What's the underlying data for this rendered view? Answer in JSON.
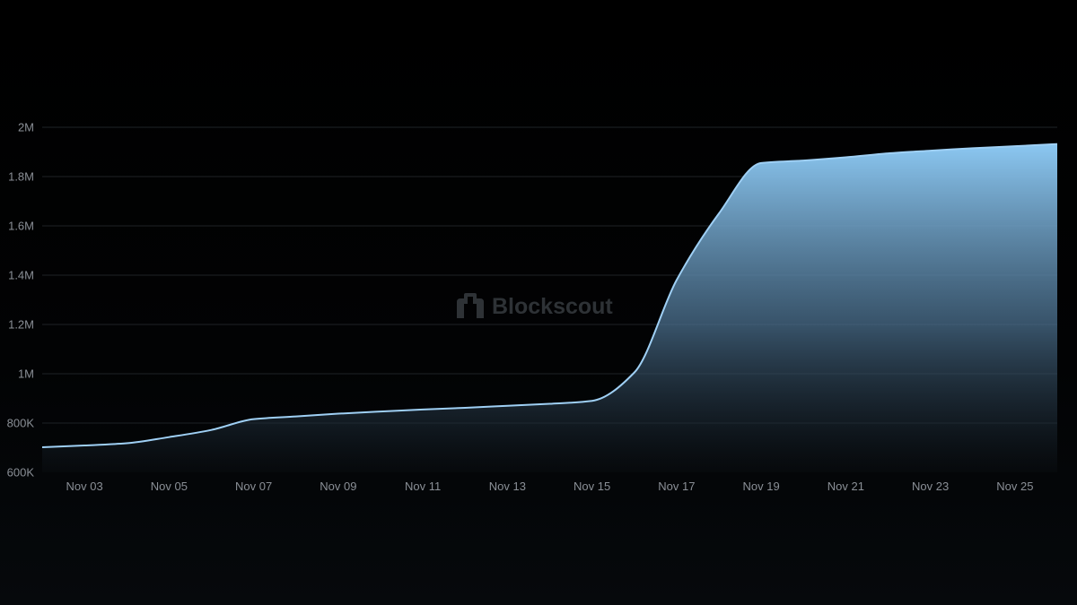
{
  "colors": {
    "background": "#000000",
    "line": "#9fd0f5",
    "fill_top": "#8cc8f2",
    "fill_bottom": "#0a0e12",
    "grid": "#1e2226",
    "tick_text": "#8a8f96",
    "watermark": "#2e3236"
  },
  "watermark": {
    "text": "Blockscout",
    "icon": "blockscout-logo-icon"
  },
  "chart_data": {
    "type": "area",
    "title": "",
    "xlabel": "",
    "ylabel": "",
    "grid": true,
    "legend": "none",
    "ylim": [
      600000,
      2000000
    ],
    "yticks": [
      {
        "value": 600000,
        "label": "600K"
      },
      {
        "value": 800000,
        "label": "800K"
      },
      {
        "value": 1000000,
        "label": "1M"
      },
      {
        "value": 1200000,
        "label": "1.2M"
      },
      {
        "value": 1400000,
        "label": "1.4M"
      },
      {
        "value": 1600000,
        "label": "1.6M"
      },
      {
        "value": 1800000,
        "label": "1.8M"
      },
      {
        "value": 2000000,
        "label": "2M"
      }
    ],
    "xlim": [
      "Nov 02",
      "Nov 26"
    ],
    "xticks": [
      "Nov 03",
      "Nov 05",
      "Nov 07",
      "Nov 09",
      "Nov 11",
      "Nov 13",
      "Nov 15",
      "Nov 17",
      "Nov 19",
      "Nov 21",
      "Nov 23",
      "Nov 25"
    ],
    "x": [
      "Nov 02",
      "Nov 03",
      "Nov 04",
      "Nov 05",
      "Nov 06",
      "Nov 07",
      "Nov 08",
      "Nov 09",
      "Nov 10",
      "Nov 11",
      "Nov 12",
      "Nov 13",
      "Nov 14",
      "Nov 15",
      "Nov 16",
      "Nov 17",
      "Nov 18",
      "Nov 19",
      "Nov 20",
      "Nov 21",
      "Nov 22",
      "Nov 23",
      "Nov 24",
      "Nov 25",
      "Nov 26"
    ],
    "series": [
      {
        "values": [
          702000,
          709000,
          718000,
          743000,
          772000,
          816000,
          827000,
          838000,
          847000,
          855000,
          862000,
          870000,
          878000,
          890000,
          1005000,
          1380000,
          1650000,
          1855000,
          1865000,
          1878000,
          1894000,
          1905000,
          1915000,
          1923000,
          1932000
        ]
      }
    ]
  }
}
